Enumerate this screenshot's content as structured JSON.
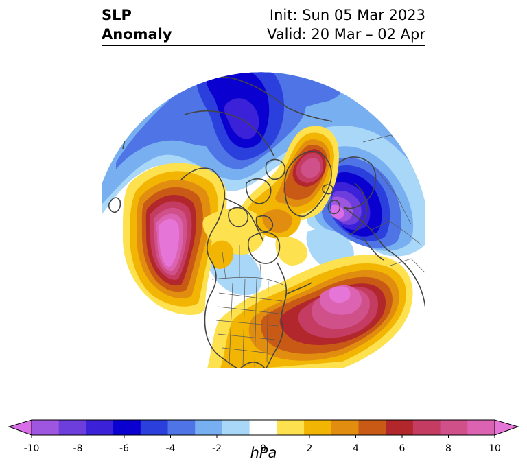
{
  "title": {
    "left_line1": "SLP",
    "left_line2": "Anomaly",
    "right_line1": "Init: Sun 05 Mar 2023",
    "right_line2": "Valid: 20 Mar – 02 Apr"
  },
  "colorbar": {
    "label": "hPa",
    "ticks": [
      "-10",
      "-8",
      "-6",
      "-4",
      "-2",
      "0",
      "2",
      "4",
      "6",
      "8",
      "10"
    ],
    "colors": [
      "#d86fe8",
      "#9e55e0",
      "#6d3edc",
      "#3b22d8",
      "#0a00cf",
      "#2a3fdc",
      "#4f74e6",
      "#77aff0",
      "#a9d7f8",
      "#ffffff",
      "#fde14e",
      "#f3b504",
      "#e08d10",
      "#c85a16",
      "#b2272b",
      "#c53c63",
      "#d0508a",
      "#dc62b2",
      "#e575d6"
    ]
  },
  "map": {
    "projection": "north-polar-stereographic",
    "features": [
      "coastlines",
      "country-borders",
      "us-state-borders"
    ]
  }
}
